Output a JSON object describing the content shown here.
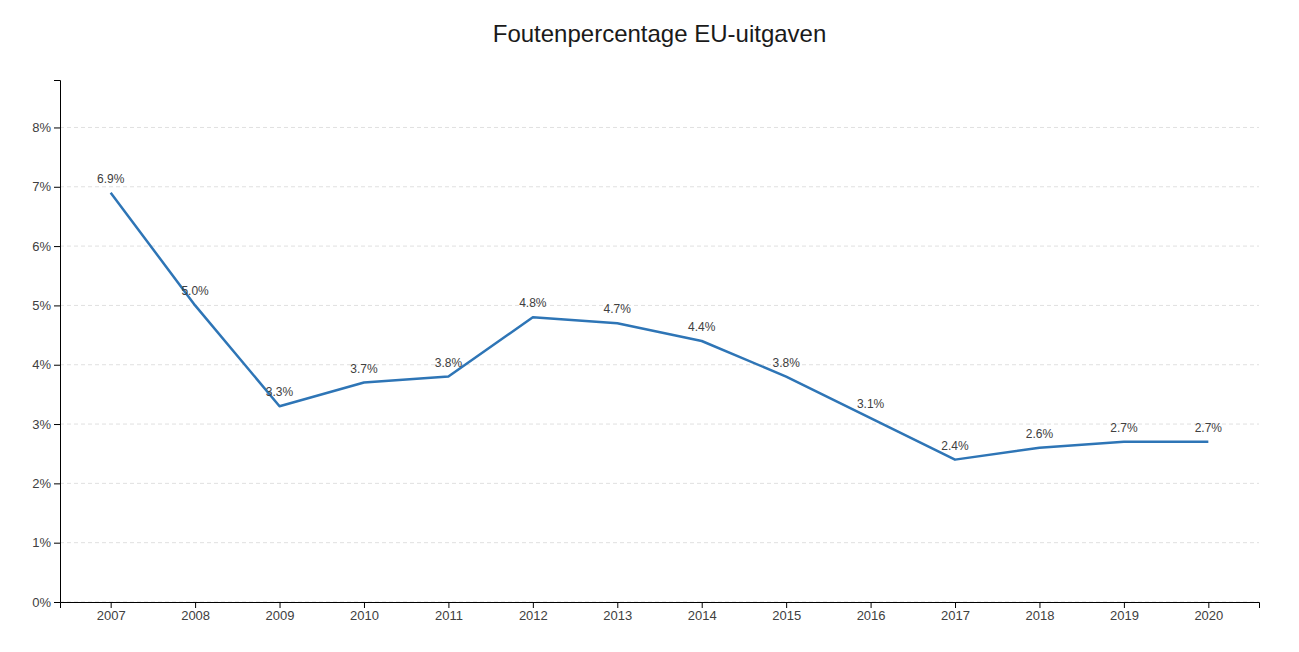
{
  "chart_data": {
    "type": "line",
    "title": "Foutenpercentage EU-uitgaven",
    "x": [
      2007,
      2008,
      2009,
      2010,
      2011,
      2012,
      2013,
      2014,
      2015,
      2016,
      2017,
      2018,
      2019,
      2020
    ],
    "values": [
      6.9,
      5.0,
      3.3,
      3.7,
      3.8,
      4.8,
      4.7,
      4.4,
      3.8,
      3.1,
      2.4,
      2.6,
      2.7,
      2.7
    ],
    "value_labels": [
      "6.9%",
      "5.0%",
      "3.3%",
      "3.7%",
      "3.8%",
      "4.8%",
      "4.7%",
      "4.4%",
      "3.8%",
      "3.1%",
      "2.4%",
      "2.6%",
      "2.7%",
      "2.7%"
    ],
    "color": "#2E75B6",
    "xlim": [
      2006.4,
      2020.6
    ],
    "xticks": [
      2007,
      2008,
      2009,
      2010,
      2011,
      2012,
      2013,
      2014,
      2015,
      2016,
      2017,
      2018,
      2019,
      2020
    ],
    "ylim": [
      0,
      8.8
    ],
    "yticks": [
      {
        "value": 0,
        "label": "0%"
      },
      {
        "value": 1,
        "label": "1%"
      },
      {
        "value": 2,
        "label": "2%"
      },
      {
        "value": 3,
        "label": "3%"
      },
      {
        "value": 4,
        "label": "4%"
      },
      {
        "value": 5,
        "label": "5%"
      },
      {
        "value": 6,
        "label": "6%"
      },
      {
        "value": 7,
        "label": "7%"
      },
      {
        "value": 8,
        "label": "8%"
      }
    ],
    "grid": "y",
    "data_labels": true
  }
}
